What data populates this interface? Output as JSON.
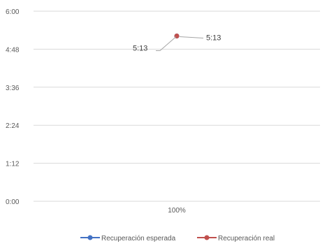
{
  "chart_data": {
    "type": "line",
    "categories": [
      "100%"
    ],
    "y_axis": {
      "ticks": [
        "0:00",
        "1:12",
        "2:24",
        "3:36",
        "4:48",
        "6:00"
      ],
      "range_minutes": [
        0,
        360
      ],
      "tick_step_minutes": 72
    },
    "grid": true,
    "legend_position": "bottom",
    "series": [
      {
        "name": "Recuperación esperada",
        "color": "#4472C4",
        "values": [
          313
        ],
        "value_labels": [
          "5:13"
        ]
      },
      {
        "name": "Recuperación real",
        "color": "#C0504D",
        "values": [
          313
        ],
        "value_labels": [
          "5:13"
        ]
      }
    ],
    "gridline_color": "#D9D9D9",
    "leader_line_color": "#A6A6A6"
  }
}
